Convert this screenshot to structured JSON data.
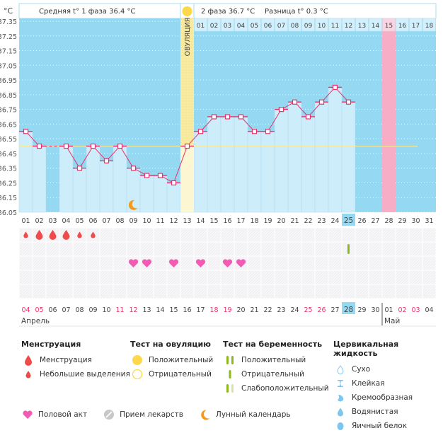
{
  "header": {
    "unit_label": "°C",
    "phase1_text": "Средняя t° 1 фаза 36.4 °C",
    "phase2_text": "2 фаза 36.7 °C",
    "difference_text": "Разница t° 0.3 °C",
    "ovulation_label": "ОВУЛЯЦИЯ"
  },
  "colors": {
    "bg_blue": "#94d8f2",
    "bar_light": "#cdedfb",
    "ovulation_yellow": "#f8e89a",
    "ovulation_yellow_light": "#fdf6d2",
    "period_pink": "#f8adc6",
    "line_red": "#e8336a",
    "coverline": "#f4ec9c",
    "weekend_red": "#e8336a",
    "sun": "#fcd84a",
    "drop_red": "#f04a4a",
    "heart_pink": "#f25ab4",
    "test_green": "#8db81e",
    "moon_orange": "#f39a1c"
  },
  "chart_data": {
    "type": "line",
    "title": "Базальная температура",
    "ylabel": "°C",
    "ylim": [
      36.05,
      37.35
    ],
    "y_ticks": [
      "37.35",
      "37.25",
      "37.15",
      "37.05",
      "36.95",
      "36.85",
      "36.75",
      "36.65",
      "36.55",
      "36.45",
      "36.35",
      "36.25",
      "36.15",
      "36.05"
    ],
    "cycle_days": [
      "01",
      "02",
      "03",
      "04",
      "05",
      "06",
      "07",
      "08",
      "09",
      "10",
      "11",
      "12",
      "13",
      "14",
      "15",
      "16",
      "17",
      "18",
      "19",
      "20",
      "21",
      "22",
      "23",
      "24",
      "25",
      "26",
      "27",
      "28",
      "29",
      "30",
      "31"
    ],
    "series": [
      {
        "name": "Базальная температура",
        "values": [
          36.6,
          36.5,
          null,
          36.5,
          36.35,
          36.5,
          36.4,
          36.5,
          36.35,
          36.3,
          36.3,
          36.25,
          36.5,
          36.6,
          36.7,
          36.7,
          36.7,
          36.6,
          36.6,
          36.75,
          36.8,
          36.7,
          36.8,
          36.9,
          36.8,
          null,
          null,
          null,
          null,
          null,
          null
        ]
      }
    ],
    "coverline": 36.5,
    "ovulation_day": "13",
    "current_day": "25",
    "expected_period_day": "28",
    "phase2_day_numbers": [
      "01",
      "02",
      "03",
      "04",
      "05",
      "06",
      "07",
      "08",
      "09",
      "10",
      "11",
      "12",
      "13",
      "14",
      "15",
      "16",
      "17",
      "18"
    ],
    "phase2_highlight": "15",
    "moon_day": "09",
    "calendar_dates": [
      {
        "d": "04",
        "red": true
      },
      {
        "d": "05",
        "red": true
      },
      {
        "d": "06",
        "red": false
      },
      {
        "d": "07",
        "red": false
      },
      {
        "d": "08",
        "red": false
      },
      {
        "d": "09",
        "red": false
      },
      {
        "d": "10",
        "red": false
      },
      {
        "d": "11",
        "red": true
      },
      {
        "d": "12",
        "red": true
      },
      {
        "d": "13",
        "red": false
      },
      {
        "d": "14",
        "red": false
      },
      {
        "d": "15",
        "red": false
      },
      {
        "d": "16",
        "red": false
      },
      {
        "d": "17",
        "red": false
      },
      {
        "d": "18",
        "red": true
      },
      {
        "d": "19",
        "red": true
      },
      {
        "d": "20",
        "red": false
      },
      {
        "d": "21",
        "red": false
      },
      {
        "d": "22",
        "red": false
      },
      {
        "d": "23",
        "red": false
      },
      {
        "d": "24",
        "red": false
      },
      {
        "d": "25",
        "red": true
      },
      {
        "d": "26",
        "red": true
      },
      {
        "d": "27",
        "red": false
      },
      {
        "d": "28",
        "red": false,
        "today": true
      },
      {
        "d": "29",
        "red": false
      },
      {
        "d": "30",
        "red": false
      },
      {
        "d": "01",
        "red": false
      },
      {
        "d": "02",
        "red": true
      },
      {
        "d": "03",
        "red": true
      },
      {
        "d": "04",
        "red": false
      }
    ],
    "months": [
      {
        "label": "Апрель",
        "start_index": 0
      },
      {
        "label": "Май",
        "start_index": 27
      }
    ],
    "menstruation": [
      {
        "day": "01",
        "size": "small"
      },
      {
        "day": "02",
        "size": "large"
      },
      {
        "day": "03",
        "size": "large"
      },
      {
        "day": "04",
        "size": "large"
      },
      {
        "day": "05",
        "size": "small"
      },
      {
        "day": "06",
        "size": "small"
      }
    ],
    "pregnancy_tests": [
      {
        "day": "25",
        "result": "negative"
      }
    ],
    "intercourse": [
      "09",
      "10",
      "12",
      "14",
      "16",
      "17"
    ]
  },
  "legend": {
    "menstruation": {
      "title": "Менструация",
      "items": [
        "Менструация",
        "Небольшие выделения"
      ]
    },
    "ovulation_test": {
      "title": "Тест на овуляцию",
      "items": [
        "Положительный",
        "Отрицательный"
      ]
    },
    "pregnancy_test": {
      "title": "Тест на беременность",
      "items": [
        "Положительный",
        "Отрицательный",
        "Слабоположительный"
      ]
    },
    "cervical_fluid": {
      "title": "Цервикальная жидкость",
      "items": [
        "Сухо",
        "Клейкая",
        "Кремообразная",
        "Водянистая",
        "Яичный белок"
      ]
    },
    "other": {
      "items": [
        "Половой акт",
        "Прием лекарств",
        "Лунный календарь"
      ]
    }
  }
}
